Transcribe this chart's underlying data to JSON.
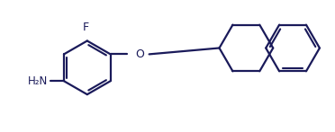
{
  "bg_color": "#ffffff",
  "line_color": "#1a1a5a",
  "line_width": 1.6,
  "figsize": [
    3.72,
    1.47
  ],
  "dpi": 100,
  "xlim": [
    0,
    10
  ],
  "ylim": [
    0,
    4
  ]
}
